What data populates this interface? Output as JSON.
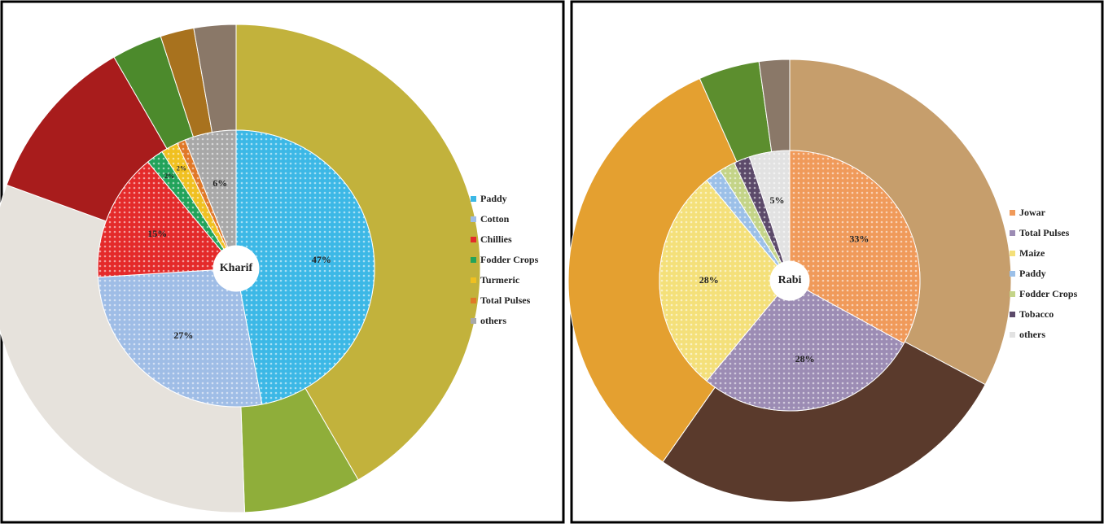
{
  "chart_data": [
    {
      "type": "doughnut",
      "title": "Kharif",
      "categories": [
        "Paddy",
        "Cotton",
        "Chillies",
        "Fodder Crops",
        "Turmeric",
        "Total Pulses",
        "others"
      ],
      "values": [
        47,
        27,
        15,
        2,
        2,
        1,
        6
      ],
      "value_labels": [
        "47%",
        "27%",
        "15%",
        "2%",
        "2%",
        null,
        "6%"
      ],
      "colors": [
        "#3cb8e6",
        "#9fbde6",
        "#e42a2a",
        "#22a35a",
        "#f0c020",
        "#e07828",
        "#a8a8a8"
      ]
    },
    {
      "type": "doughnut",
      "title": "Rabi",
      "categories": [
        "Jowar",
        "Total Pulses",
        "Maize",
        "Paddy",
        "Fodder Crops",
        "Tobacco",
        "others"
      ],
      "values": [
        33,
        28,
        28,
        2,
        2,
        2,
        5
      ],
      "value_labels": [
        "33%",
        "28%",
        "28%",
        null,
        null,
        null,
        "5%"
      ],
      "colors": [
        "#f09a5a",
        "#9c8cb4",
        "#f4e07a",
        "#9cc0e8",
        "#c4d488",
        "#5c4a6a",
        "#e2e2e2"
      ]
    }
  ]
}
